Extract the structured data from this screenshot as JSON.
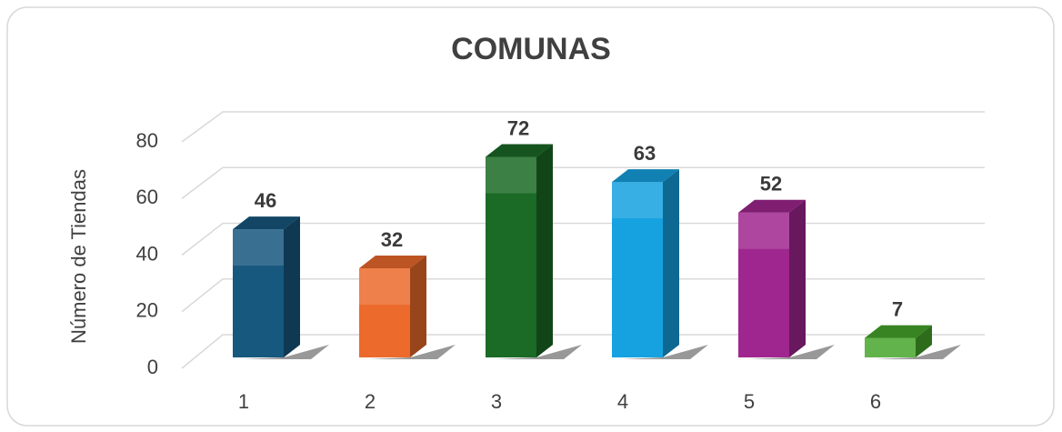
{
  "chart_data": {
    "type": "bar3d",
    "title": "COMUNAS",
    "y_label": "Número de Tiendas",
    "categories": [
      "1",
      "2",
      "3",
      "4",
      "5",
      "6"
    ],
    "values": [
      46,
      32,
      72,
      63,
      52,
      7
    ],
    "colors": [
      "#17587e",
      "#ec6a2c",
      "#1b6a26",
      "#16a2e0",
      "#a0268f",
      "#47a62c"
    ],
    "ylim": [
      0,
      80
    ],
    "yticks": [
      0,
      20,
      40,
      60,
      80
    ],
    "grid": true
  }
}
